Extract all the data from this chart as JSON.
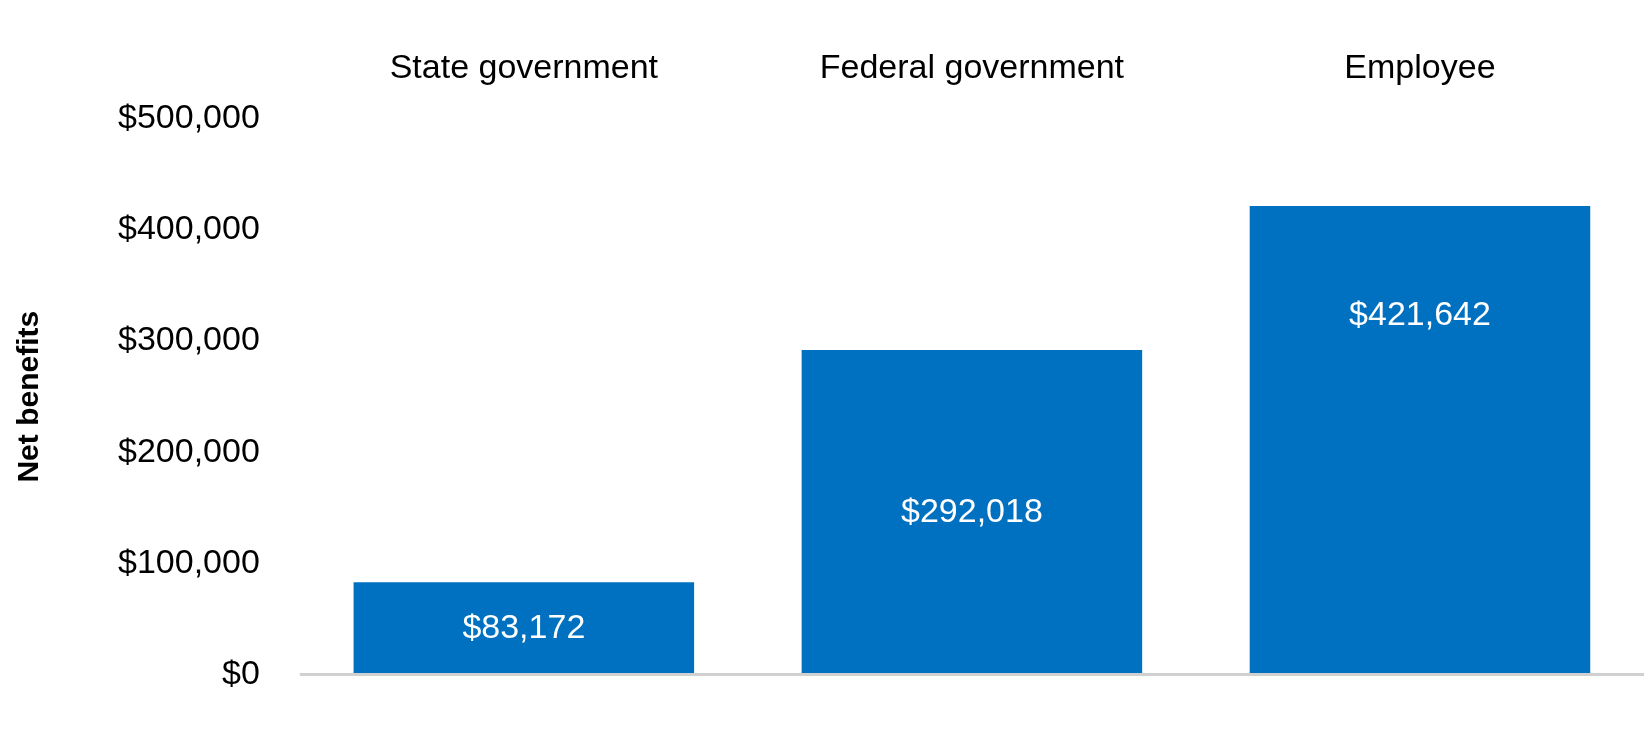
{
  "chart_data": {
    "type": "bar",
    "ylabel": "Net benefits",
    "categories": [
      "State government",
      "Federal government",
      "Employee"
    ],
    "values": [
      83172,
      292018,
      421642
    ],
    "value_labels": [
      "$83,172",
      "$292,018",
      "$421,642"
    ],
    "color": "#0070c0",
    "ylim": [
      0,
      500000
    ],
    "yticks": [
      {
        "value": 0,
        "label": "$0"
      },
      {
        "value": 100000,
        "label": "$100,000"
      },
      {
        "value": 200000,
        "label": "$200,000"
      },
      {
        "value": 300000,
        "label": "$300,000"
      },
      {
        "value": 400000,
        "label": "$400,000"
      },
      {
        "value": 500000,
        "label": "$500,000"
      }
    ],
    "legend": false
  }
}
